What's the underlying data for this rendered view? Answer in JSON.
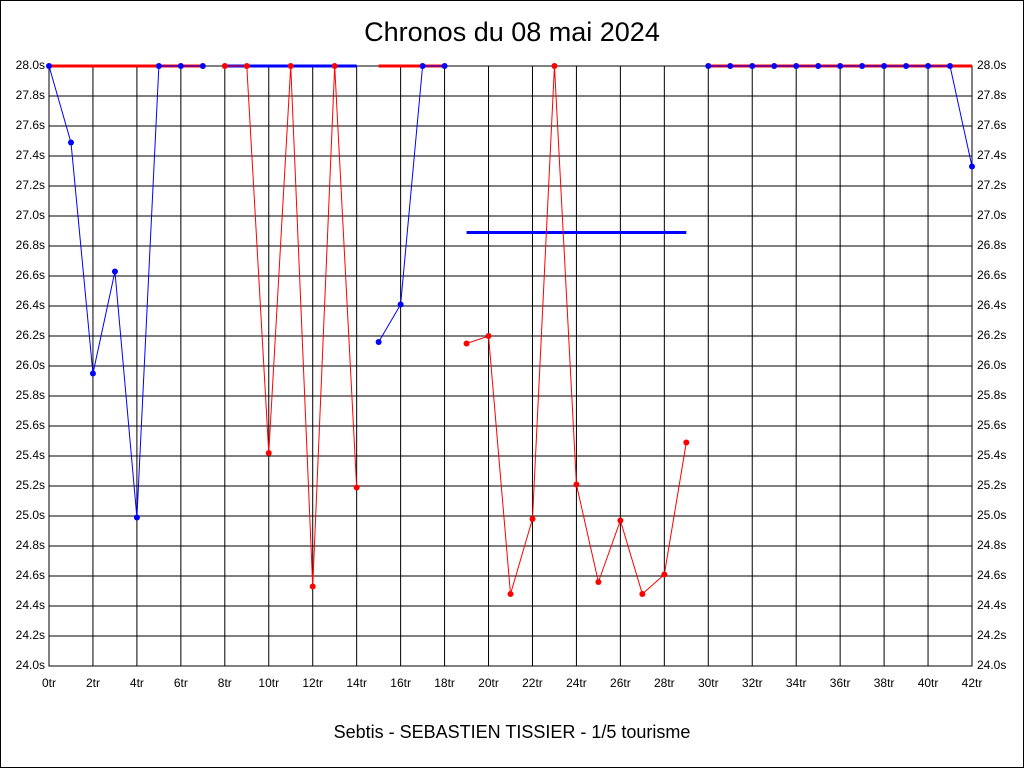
{
  "chart_data": {
    "type": "line",
    "title": "Chronos du 08 mai 2024",
    "caption": "Sebtis - SEBASTIEN TISSIER - 1/5 tourisme",
    "xlim": [
      0,
      42
    ],
    "xticks": [
      {
        "value": 0,
        "label": "0tr"
      },
      {
        "value": 2,
        "label": "2tr"
      },
      {
        "value": 4,
        "label": "4tr"
      },
      {
        "value": 6,
        "label": "6tr"
      },
      {
        "value": 8,
        "label": "8tr"
      },
      {
        "value": 10,
        "label": "10tr"
      },
      {
        "value": 12,
        "label": "12tr"
      },
      {
        "value": 14,
        "label": "14tr"
      },
      {
        "value": 16,
        "label": "16tr"
      },
      {
        "value": 18,
        "label": "18tr"
      },
      {
        "value": 20,
        "label": "20tr"
      },
      {
        "value": 22,
        "label": "22tr"
      },
      {
        "value": 24,
        "label": "24tr"
      },
      {
        "value": 26,
        "label": "26tr"
      },
      {
        "value": 28,
        "label": "28tr"
      },
      {
        "value": 30,
        "label": "30tr"
      },
      {
        "value": 32,
        "label": "32tr"
      },
      {
        "value": 34,
        "label": "34tr"
      },
      {
        "value": 36,
        "label": "36tr"
      },
      {
        "value": 38,
        "label": "38tr"
      },
      {
        "value": 40,
        "label": "40tr"
      },
      {
        "value": 42,
        "label": "42tr"
      }
    ],
    "ylim": [
      24.0,
      28.0
    ],
    "yticks": [
      {
        "value": 24.0,
        "label": "24.0s"
      },
      {
        "value": 24.2,
        "label": "24.2s"
      },
      {
        "value": 24.4,
        "label": "24.4s"
      },
      {
        "value": 24.6,
        "label": "24.6s"
      },
      {
        "value": 24.8,
        "label": "24.8s"
      },
      {
        "value": 25.0,
        "label": "25.0s"
      },
      {
        "value": 25.2,
        "label": "25.2s"
      },
      {
        "value": 25.4,
        "label": "25.4s"
      },
      {
        "value": 25.6,
        "label": "25.6s"
      },
      {
        "value": 25.8,
        "label": "25.8s"
      },
      {
        "value": 26.0,
        "label": "26.0s"
      },
      {
        "value": 26.2,
        "label": "26.2s"
      },
      {
        "value": 26.4,
        "label": "26.4s"
      },
      {
        "value": 26.6,
        "label": "26.6s"
      },
      {
        "value": 26.8,
        "label": "26.8s"
      },
      {
        "value": 27.0,
        "label": "27.0s"
      },
      {
        "value": 27.2,
        "label": "27.2s"
      },
      {
        "value": 27.4,
        "label": "27.4s"
      },
      {
        "value": 27.6,
        "label": "27.6s"
      },
      {
        "value": 27.8,
        "label": "27.8s"
      },
      {
        "value": 28.0,
        "label": "28.0s"
      }
    ],
    "grid": true,
    "series": [
      {
        "color": "#0000ff",
        "x": [
          0,
          1,
          2,
          3,
          4,
          5,
          6,
          7
        ],
        "values": [
          28.0,
          27.49,
          25.95,
          26.63,
          24.99,
          28.0,
          28.0,
          28.0
        ],
        "average": 28.0,
        "average_color": "#ff0000"
      },
      {
        "color": "#ff0000",
        "x": [
          8,
          9,
          10,
          11,
          12,
          13,
          14
        ],
        "values": [
          28.0,
          28.0,
          25.42,
          28.0,
          24.53,
          28.0,
          25.19
        ],
        "average": 28.0,
        "average_color": "#0000ff"
      },
      {
        "color": "#0000ff",
        "x": [
          15,
          16,
          17,
          18
        ],
        "values": [
          26.16,
          26.41,
          28.0,
          28.0
        ],
        "average": 28.0,
        "average_color": "#ff0000"
      },
      {
        "color": "#ff0000",
        "x": [
          19,
          20,
          21,
          22,
          23,
          24,
          25,
          26,
          27,
          28,
          29
        ],
        "values": [
          26.15,
          26.2,
          24.48,
          24.98,
          28.0,
          25.21,
          24.56,
          24.97,
          24.48,
          24.61,
          25.49
        ],
        "average": 26.89,
        "average_color": "#0000ff"
      },
      {
        "color": "#0000ff",
        "x": [
          30,
          31,
          32,
          33,
          34,
          35,
          36,
          37,
          38,
          39,
          40,
          41,
          42
        ],
        "values": [
          28.0,
          28.0,
          28.0,
          28.0,
          28.0,
          28.0,
          28.0,
          28.0,
          28.0,
          28.0,
          28.0,
          28.0,
          27.33
        ],
        "average": 28.0,
        "average_color": "#ff0000"
      }
    ]
  }
}
